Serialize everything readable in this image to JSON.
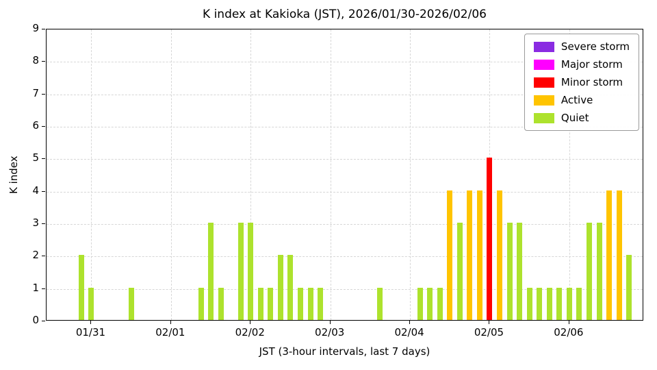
{
  "chart_data": {
    "type": "bar",
    "title": "K index at Kakioka (JST), 2026/01/30-2026/02/06",
    "xlabel": "JST (3-hour intervals, last 7 days)",
    "ylabel": "K index",
    "ylim": [
      0,
      9
    ],
    "yticks": [
      0,
      1,
      2,
      3,
      4,
      5,
      6,
      7,
      8,
      9
    ],
    "grid": true,
    "legend_position": "upper right",
    "interval_hours": 3,
    "n_intervals": 60,
    "xticks": [
      {
        "slot": 4,
        "label": "01/31"
      },
      {
        "slot": 12,
        "label": "02/01"
      },
      {
        "slot": 20,
        "label": "02/02"
      },
      {
        "slot": 28,
        "label": "02/03"
      },
      {
        "slot": 36,
        "label": "02/04"
      },
      {
        "slot": 44,
        "label": "02/05"
      },
      {
        "slot": 52,
        "label": "02/06"
      }
    ],
    "k_values": [
      0,
      0,
      0,
      2,
      1,
      0,
      0,
      0,
      1,
      0,
      0,
      0,
      0,
      0,
      0,
      1,
      3,
      1,
      0,
      3,
      3,
      1,
      1,
      2,
      2,
      1,
      1,
      1,
      0,
      0,
      0,
      0,
      0,
      1,
      0,
      0,
      0,
      1,
      1,
      1,
      4,
      3,
      4,
      4,
      5,
      4,
      3,
      3,
      1,
      1,
      1,
      1,
      1,
      1,
      3,
      3,
      4,
      4,
      2,
      0
    ],
    "legend": [
      {
        "label": "Severe storm",
        "color": "#8A2BE2"
      },
      {
        "label": "Major storm",
        "color": "#FF00FF"
      },
      {
        "label": "Minor storm",
        "color": "#FF0000"
      },
      {
        "label": "Active",
        "color": "#FFC400"
      },
      {
        "label": "Quiet",
        "color": "#ADE22D"
      }
    ],
    "k_color_thresholds": {
      "severe_min": 8,
      "major_min": 6,
      "minor_min": 5,
      "active_min": 4
    }
  }
}
